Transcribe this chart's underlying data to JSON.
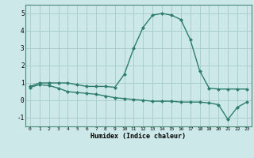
{
  "xlabel": "Humidex (Indice chaleur)",
  "x_values": [
    0,
    1,
    2,
    3,
    4,
    5,
    6,
    7,
    8,
    9,
    10,
    11,
    12,
    13,
    14,
    15,
    16,
    17,
    18,
    19,
    20,
    21,
    22,
    23
  ],
  "line1_y": [
    0.8,
    1.0,
    1.0,
    1.0,
    1.0,
    0.9,
    0.8,
    0.8,
    0.8,
    0.75,
    1.5,
    3.0,
    4.2,
    4.9,
    5.0,
    4.9,
    4.65,
    3.5,
    1.7,
    0.7,
    0.65,
    0.65,
    0.65,
    0.65
  ],
  "line2_y": [
    0.75,
    0.9,
    0.85,
    0.7,
    0.5,
    0.45,
    0.4,
    0.35,
    0.25,
    0.15,
    0.1,
    0.05,
    0.0,
    -0.05,
    -0.05,
    -0.05,
    -0.1,
    -0.1,
    -0.1,
    -0.15,
    -0.25,
    -1.1,
    -0.4,
    -0.1
  ],
  "line_color": "#2e7d6e",
  "bg_color": "#cce8e8",
  "grid_color": "#aacece",
  "ylim": [
    -1.5,
    5.5
  ],
  "yticks": [
    -1,
    0,
    1,
    2,
    3,
    4,
    5
  ],
  "xlim": [
    -0.5,
    23.5
  ]
}
